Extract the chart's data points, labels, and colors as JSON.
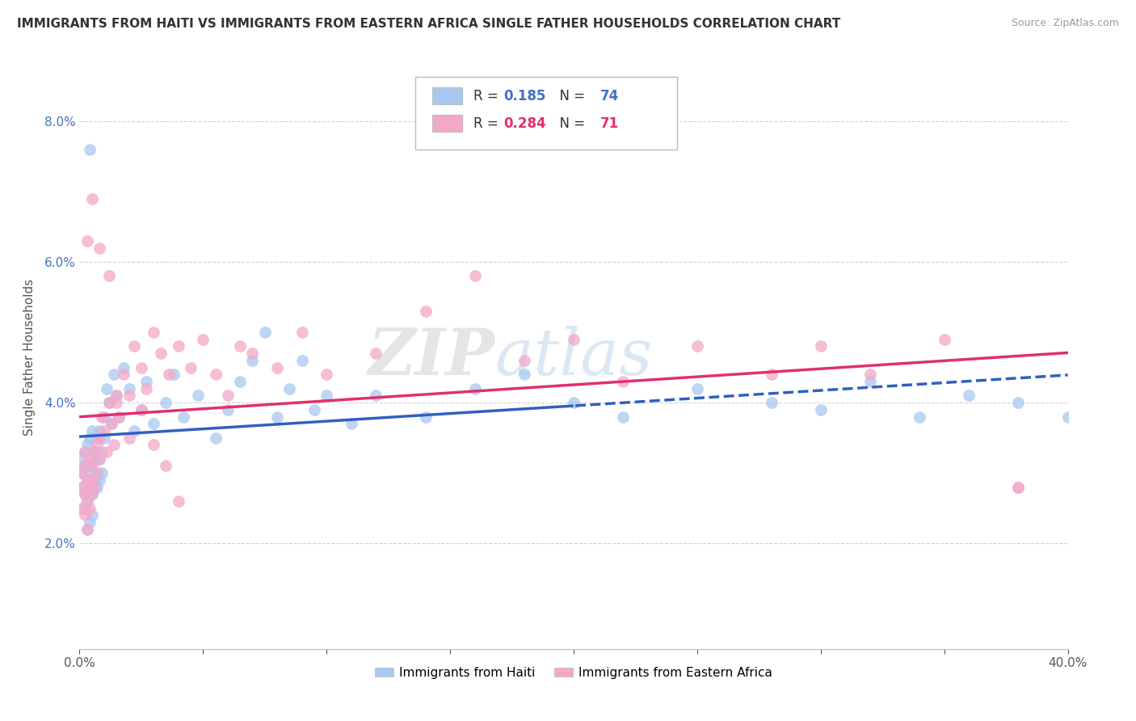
{
  "title": "IMMIGRANTS FROM HAITI VS IMMIGRANTS FROM EASTERN AFRICA SINGLE FATHER HOUSEHOLDS CORRELATION CHART",
  "source": "Source: ZipAtlas.com",
  "ylabel": "Single Father Households",
  "watermark": "ZIPatlas",
  "legend_r1_val": "0.185",
  "legend_n1_val": "74",
  "legend_r2_val": "0.284",
  "legend_n2_val": "71",
  "series1_name": "Immigrants from Haiti",
  "series2_name": "Immigrants from Eastern Africa",
  "color1": "#A8C8F0",
  "color2": "#F4A8C8",
  "line1_color": "#3060C0",
  "line2_color": "#E03070",
  "xmin": 0.0,
  "xmax": 0.4,
  "ymin": 0.005,
  "ymax": 0.088,
  "yticks": [
    0.02,
    0.04,
    0.06,
    0.08
  ],
  "ytick_labels": [
    "2.0%",
    "4.0%",
    "6.0%",
    "8.0%"
  ],
  "haiti_x": [
    0.001,
    0.001,
    0.001,
    0.002,
    0.002,
    0.002,
    0.002,
    0.003,
    0.003,
    0.003,
    0.003,
    0.004,
    0.004,
    0.004,
    0.004,
    0.005,
    0.005,
    0.005,
    0.005,
    0.006,
    0.006,
    0.006,
    0.007,
    0.007,
    0.007,
    0.008,
    0.008,
    0.008,
    0.009,
    0.009,
    0.01,
    0.01,
    0.011,
    0.012,
    0.013,
    0.014,
    0.015,
    0.016,
    0.018,
    0.02,
    0.022,
    0.025,
    0.027,
    0.03,
    0.035,
    0.038,
    0.042,
    0.048,
    0.055,
    0.06,
    0.065,
    0.07,
    0.075,
    0.08,
    0.085,
    0.09,
    0.095,
    0.1,
    0.11,
    0.12,
    0.14,
    0.16,
    0.18,
    0.2,
    0.22,
    0.25,
    0.28,
    0.3,
    0.32,
    0.34,
    0.36,
    0.38,
    0.4,
    0.004
  ],
  "haiti_y": [
    0.03,
    0.028,
    0.032,
    0.025,
    0.031,
    0.027,
    0.033,
    0.029,
    0.026,
    0.034,
    0.022,
    0.031,
    0.028,
    0.035,
    0.023,
    0.03,
    0.027,
    0.036,
    0.024,
    0.032,
    0.029,
    0.033,
    0.03,
    0.035,
    0.028,
    0.036,
    0.032,
    0.029,
    0.033,
    0.03,
    0.038,
    0.035,
    0.042,
    0.04,
    0.037,
    0.044,
    0.041,
    0.038,
    0.045,
    0.042,
    0.036,
    0.039,
    0.043,
    0.037,
    0.04,
    0.044,
    0.038,
    0.041,
    0.035,
    0.039,
    0.043,
    0.046,
    0.05,
    0.038,
    0.042,
    0.046,
    0.039,
    0.041,
    0.037,
    0.041,
    0.038,
    0.042,
    0.044,
    0.04,
    0.038,
    0.042,
    0.04,
    0.039,
    0.043,
    0.038,
    0.041,
    0.04,
    0.038,
    0.076
  ],
  "africa_x": [
    0.001,
    0.001,
    0.001,
    0.002,
    0.002,
    0.002,
    0.002,
    0.003,
    0.003,
    0.003,
    0.004,
    0.004,
    0.004,
    0.005,
    0.005,
    0.005,
    0.006,
    0.006,
    0.007,
    0.007,
    0.008,
    0.008,
    0.009,
    0.01,
    0.011,
    0.012,
    0.013,
    0.014,
    0.015,
    0.016,
    0.018,
    0.02,
    0.022,
    0.025,
    0.027,
    0.03,
    0.033,
    0.036,
    0.04,
    0.045,
    0.05,
    0.055,
    0.06,
    0.065,
    0.07,
    0.08,
    0.09,
    0.1,
    0.12,
    0.14,
    0.16,
    0.18,
    0.2,
    0.22,
    0.25,
    0.28,
    0.3,
    0.32,
    0.35,
    0.38,
    0.003,
    0.005,
    0.008,
    0.012,
    0.015,
    0.02,
    0.025,
    0.03,
    0.035,
    0.04,
    0.38
  ],
  "africa_y": [
    0.028,
    0.03,
    0.025,
    0.027,
    0.031,
    0.024,
    0.033,
    0.026,
    0.029,
    0.022,
    0.028,
    0.032,
    0.025,
    0.029,
    0.031,
    0.027,
    0.033,
    0.028,
    0.034,
    0.03,
    0.035,
    0.032,
    0.038,
    0.036,
    0.033,
    0.04,
    0.037,
    0.034,
    0.041,
    0.038,
    0.044,
    0.041,
    0.048,
    0.045,
    0.042,
    0.05,
    0.047,
    0.044,
    0.048,
    0.045,
    0.049,
    0.044,
    0.041,
    0.048,
    0.047,
    0.045,
    0.05,
    0.044,
    0.047,
    0.053,
    0.058,
    0.046,
    0.049,
    0.043,
    0.048,
    0.044,
    0.048,
    0.044,
    0.049,
    0.028,
    0.063,
    0.069,
    0.062,
    0.058,
    0.04,
    0.035,
    0.039,
    0.034,
    0.031,
    0.026,
    0.028
  ]
}
